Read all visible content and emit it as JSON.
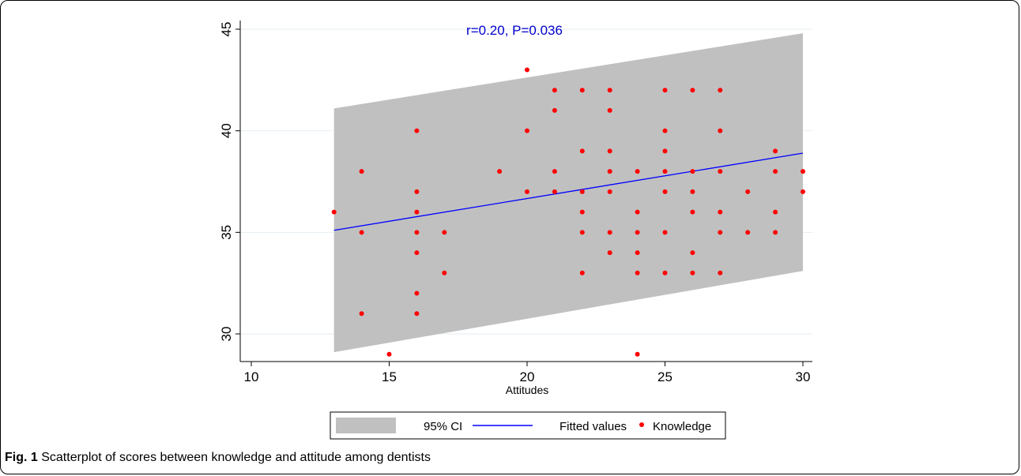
{
  "chart_data": {
    "type": "scatter",
    "title": "",
    "annotation": "r=0.20, P=0.036",
    "xlabel": "Attitudes",
    "ylabel": "",
    "xlim": [
      10,
      30
    ],
    "ylim": [
      28.5,
      45.3
    ],
    "x_ticks": [
      10,
      15,
      20,
      25,
      30
    ],
    "y_ticks": [
      30,
      35,
      40,
      45
    ],
    "grid": "horizontal",
    "legend_position": "bottom",
    "colors": {
      "ci": "#c0c0c0",
      "fit": "#0000ff",
      "points": "#ff0000",
      "annotation": "#0000cc"
    },
    "series": [
      {
        "name": "95% CI",
        "kind": "band",
        "x": [
          13,
          30
        ],
        "lower": [
          29.1,
          33.1
        ],
        "upper": [
          41.1,
          44.8
        ]
      },
      {
        "name": "Fitted values",
        "kind": "line",
        "x": [
          13,
          30
        ],
        "y": [
          35.1,
          38.9
        ]
      },
      {
        "name": "Knowledge",
        "kind": "scatter",
        "points": [
          [
            13,
            36
          ],
          [
            14,
            38
          ],
          [
            14,
            35
          ],
          [
            14,
            31
          ],
          [
            15,
            29
          ],
          [
            16,
            40
          ],
          [
            16,
            37
          ],
          [
            16,
            36
          ],
          [
            16,
            35
          ],
          [
            16,
            34
          ],
          [
            16,
            32
          ],
          [
            16,
            31
          ],
          [
            17,
            35
          ],
          [
            17,
            33
          ],
          [
            19,
            38
          ],
          [
            20,
            43
          ],
          [
            20,
            40
          ],
          [
            20,
            37
          ],
          [
            21,
            42
          ],
          [
            21,
            41
          ],
          [
            21,
            38
          ],
          [
            21,
            37
          ],
          [
            22,
            42
          ],
          [
            22,
            39
          ],
          [
            22,
            37
          ],
          [
            22,
            36
          ],
          [
            22,
            35
          ],
          [
            22,
            33
          ],
          [
            23,
            42
          ],
          [
            23,
            41
          ],
          [
            23,
            39
          ],
          [
            23,
            38
          ],
          [
            23,
            37
          ],
          [
            23,
            35
          ],
          [
            23,
            34
          ],
          [
            24,
            38
          ],
          [
            24,
            36
          ],
          [
            24,
            35
          ],
          [
            24,
            34
          ],
          [
            24,
            33
          ],
          [
            24,
            29
          ],
          [
            25,
            42
          ],
          [
            25,
            40
          ],
          [
            25,
            39
          ],
          [
            25,
            38
          ],
          [
            25,
            37
          ],
          [
            25,
            35
          ],
          [
            25,
            33
          ],
          [
            26,
            42
          ],
          [
            26,
            38
          ],
          [
            26,
            37
          ],
          [
            26,
            36
          ],
          [
            26,
            34
          ],
          [
            26,
            33
          ],
          [
            27,
            42
          ],
          [
            27,
            40
          ],
          [
            27,
            38
          ],
          [
            27,
            36
          ],
          [
            27,
            35
          ],
          [
            27,
            33
          ],
          [
            28,
            37
          ],
          [
            28,
            35
          ],
          [
            29,
            39
          ],
          [
            29,
            38
          ],
          [
            29,
            36
          ],
          [
            29,
            35
          ],
          [
            30,
            38
          ],
          [
            30,
            37
          ]
        ]
      }
    ]
  },
  "caption": {
    "label": "Fig. 1",
    "text": " Scatterplot of scores between knowledge and attitude among dentists"
  }
}
